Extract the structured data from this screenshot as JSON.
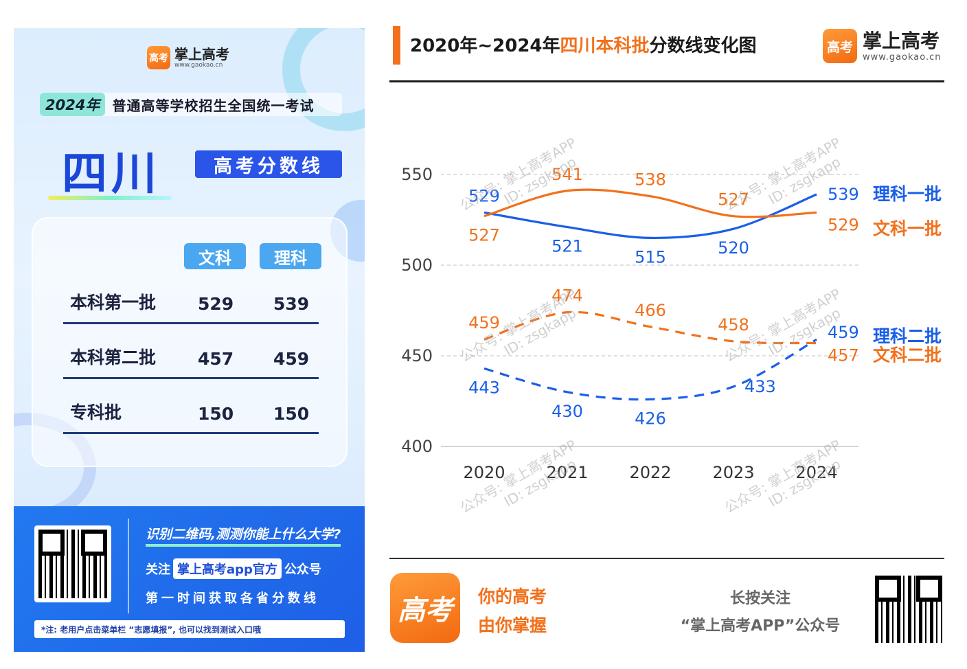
{
  "poster": {
    "brand_name": "掌上高考",
    "brand_url": "www.gaokao.cn",
    "logo_text": "高考",
    "exam_year": "2024年",
    "exam_text": "普通高等学校招生全国统一考试",
    "province": "四川",
    "score_title": "高考分数线",
    "col_wen": "文科",
    "col_li": "理科",
    "rows": [
      {
        "label": "本科第一批",
        "wen": "529",
        "li": "539"
      },
      {
        "label": "本科第二批",
        "wen": "457",
        "li": "459"
      },
      {
        "label": "专科批",
        "wen": "150",
        "li": "150"
      }
    ],
    "foot_question": "识别二维码,测测你能上什么大学?",
    "foot_follow_pre": "关注",
    "foot_follow_pill": "掌上高考app官方",
    "foot_follow_post": "公众号",
    "foot_first": "第一时间获取各省分数线",
    "foot_note": "*注: 老用户点击菜单栏 “志愿填报”, 也可以找到测试入口哦"
  },
  "header": {
    "title_pre": "2020年~2024年",
    "title_hl": "四川本科批",
    "title_post": "分数线变化图",
    "brand_name": "掌上高考",
    "brand_url": "www.gaokao.cn",
    "logo_text": "高考"
  },
  "watermark": {
    "line1": "公众号: 掌上高考APP",
    "line2": "ID: zsgkapp"
  },
  "footer": {
    "logo_text": "高考",
    "slogan1": "你的高考",
    "slogan2": "由你掌握",
    "press1": "长按关注",
    "press2": "“掌上高考APP”公众号"
  },
  "colors": {
    "orange": "#f2711c",
    "blue": "#1a5fe8",
    "gridline": "#cccccc"
  },
  "chart_data": {
    "type": "line",
    "title": "2020年~2024年四川本科批分数线变化图",
    "categories": [
      "2020",
      "2021",
      "2022",
      "2023",
      "2024"
    ],
    "ylim": [
      400,
      550
    ],
    "yticks": [
      400,
      450,
      500,
      550
    ],
    "grid": true,
    "legend": "right-end-labels",
    "series": [
      {
        "name": "理科一批",
        "values": [
          529,
          521,
          515,
          520,
          539
        ],
        "color": "#1a5fe8",
        "dash": false
      },
      {
        "name": "文科一批",
        "values": [
          527,
          541,
          538,
          527,
          529
        ],
        "color": "#f2711c",
        "dash": false
      },
      {
        "name": "理科二批",
        "values": [
          443,
          430,
          426,
          433,
          459
        ],
        "color": "#1a5fe8",
        "dash": true
      },
      {
        "name": "文科二批",
        "values": [
          459,
          474,
          466,
          458,
          457
        ],
        "color": "#f2711c",
        "dash": true
      }
    ]
  }
}
